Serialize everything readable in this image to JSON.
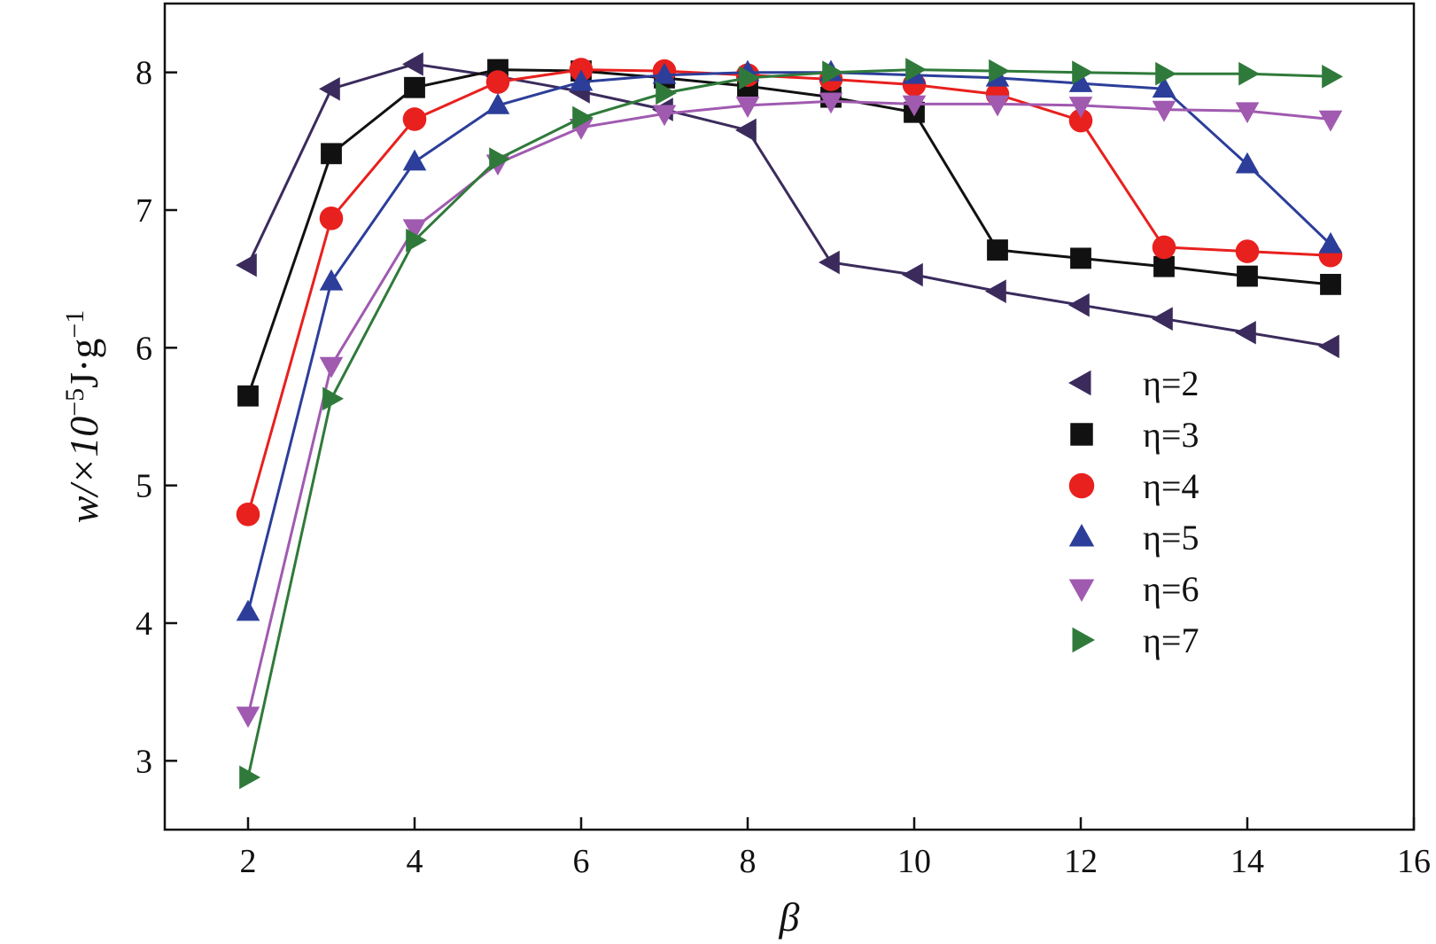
{
  "chart_data": {
    "type": "line",
    "title": "",
    "xlabel": "β",
    "ylabel_main": "w/×10",
    "ylabel_exp": "−5",
    "ylabel_unit": "J·g",
    "ylabel_unit_exp": "−1",
    "xlim": [
      1,
      16
    ],
    "ylim": [
      2.5,
      8.5
    ],
    "xticks": [
      2,
      4,
      6,
      8,
      10,
      12,
      14,
      16
    ],
    "yticks": [
      3,
      4,
      5,
      6,
      7,
      8
    ],
    "grid": false,
    "legend_position": "right",
    "x": [
      2,
      3,
      4,
      5,
      6,
      7,
      8,
      9,
      10,
      11,
      12,
      13,
      14,
      15
    ],
    "series": [
      {
        "name": "η=2",
        "marker": "triangle-left",
        "color": "#3b2b5c",
        "values": [
          6.6,
          7.88,
          8.06,
          7.97,
          7.86,
          7.73,
          7.58,
          6.62,
          6.53,
          6.41,
          6.31,
          6.21,
          6.11,
          6.01
        ]
      },
      {
        "name": "η=3",
        "marker": "square",
        "color": "#111111",
        "values": [
          5.65,
          7.41,
          7.89,
          8.02,
          8.01,
          7.96,
          7.9,
          7.82,
          7.71,
          6.71,
          6.65,
          6.59,
          6.52,
          6.46
        ]
      },
      {
        "name": "η=4",
        "marker": "circle",
        "color": "#e8201e",
        "values": [
          4.79,
          6.94,
          7.66,
          7.93,
          8.02,
          8.01,
          7.98,
          7.95,
          7.91,
          7.84,
          7.65,
          6.73,
          6.7,
          6.67
        ]
      },
      {
        "name": "η=5",
        "marker": "triangle-up",
        "color": "#2c3e9a",
        "values": [
          4.08,
          6.48,
          7.35,
          7.76,
          7.93,
          7.98,
          8.0,
          8.0,
          7.98,
          7.96,
          7.92,
          7.88,
          7.33,
          6.75
        ]
      },
      {
        "name": "η=6",
        "marker": "triangle-down",
        "color": "#a05ab0",
        "values": [
          3.33,
          5.87,
          6.87,
          7.34,
          7.6,
          7.7,
          7.76,
          7.79,
          7.77,
          7.77,
          7.76,
          7.73,
          7.72,
          7.66
        ]
      },
      {
        "name": "η=7",
        "marker": "triangle-right",
        "color": "#2f7a3a",
        "values": [
          2.88,
          5.63,
          6.78,
          7.37,
          7.67,
          7.85,
          7.96,
          8.0,
          8.02,
          8.01,
          8.0,
          7.99,
          7.99,
          7.97
        ]
      }
    ]
  }
}
